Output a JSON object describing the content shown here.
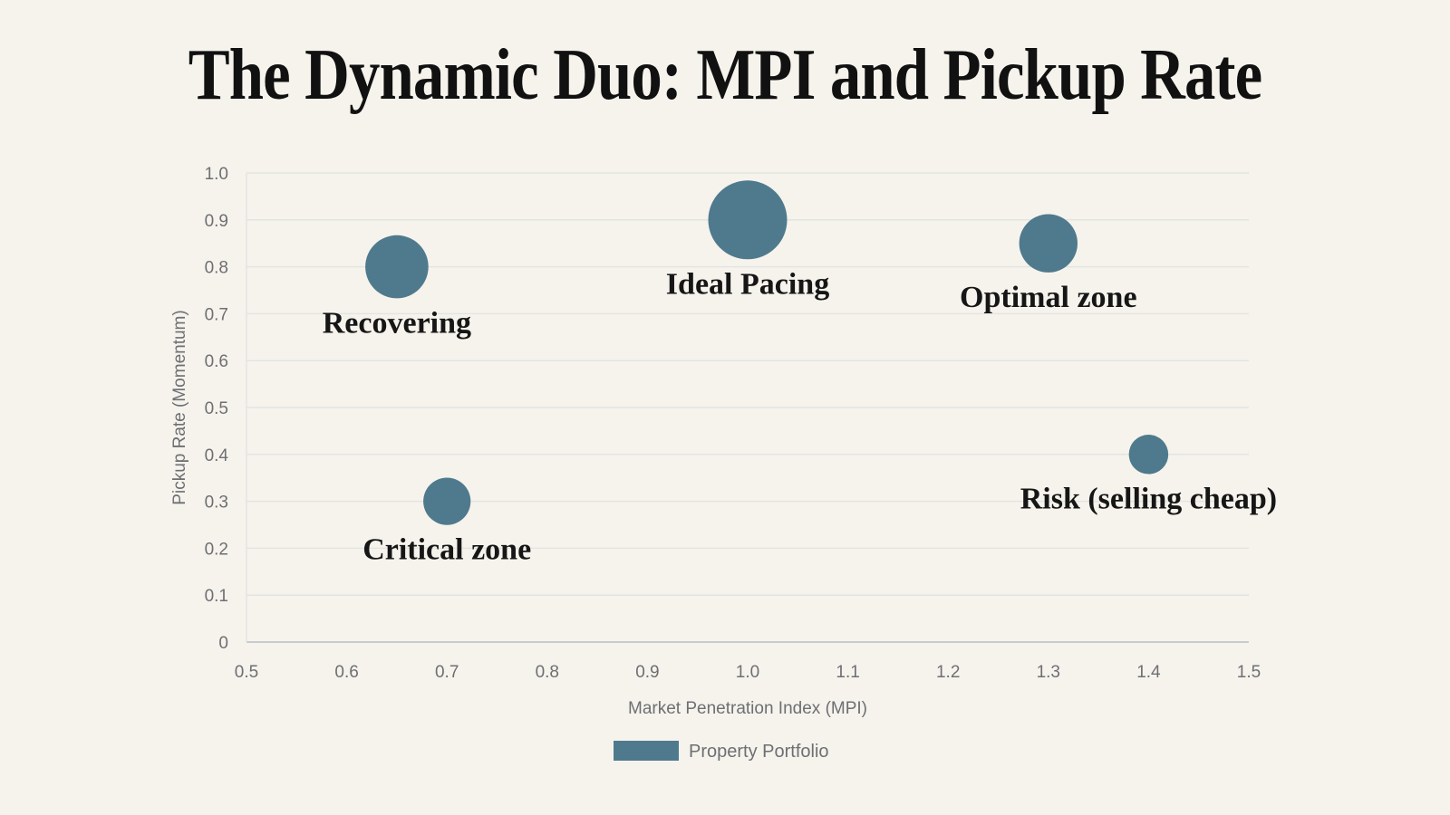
{
  "title": "The Dynamic Duo: MPI and Pickup Rate",
  "colors": {
    "bubble": "#4f7a8d",
    "background": "#f6f3ec",
    "grid": "#e3e4e2"
  },
  "chart_data": {
    "type": "bubble",
    "xlabel": "Market Penetration Index (MPI)",
    "ylabel": "Pickup Rate (Momentum)",
    "xlim": [
      0.5,
      1.5
    ],
    "ylim": [
      0,
      1.0
    ],
    "xticks": [
      "0.5",
      "0.6",
      "0.7",
      "0.8",
      "0.9",
      "1.0",
      "1.1",
      "1.2",
      "1.3",
      "1.4",
      "1.5"
    ],
    "yticks": [
      "0",
      "0.1",
      "0.2",
      "0.3",
      "0.4",
      "0.5",
      "0.6",
      "0.7",
      "0.8",
      "0.9",
      "1.0"
    ],
    "grid": true,
    "legend": {
      "position": "bottom",
      "entries": [
        "Property Portfolio"
      ]
    },
    "series": [
      {
        "name": "Property Portfolio",
        "points": [
          {
            "x": 0.65,
            "y": 0.8,
            "size": 40,
            "label": "Recovering"
          },
          {
            "x": 1.0,
            "y": 0.9,
            "size": 50,
            "label": "Ideal Pacing"
          },
          {
            "x": 1.3,
            "y": 0.85,
            "size": 37,
            "label": "Optimal zone"
          },
          {
            "x": 0.7,
            "y": 0.3,
            "size": 30,
            "label": "Critical zone"
          },
          {
            "x": 1.4,
            "y": 0.4,
            "size": 25,
            "label": "Risk (selling cheap)"
          }
        ]
      }
    ]
  }
}
